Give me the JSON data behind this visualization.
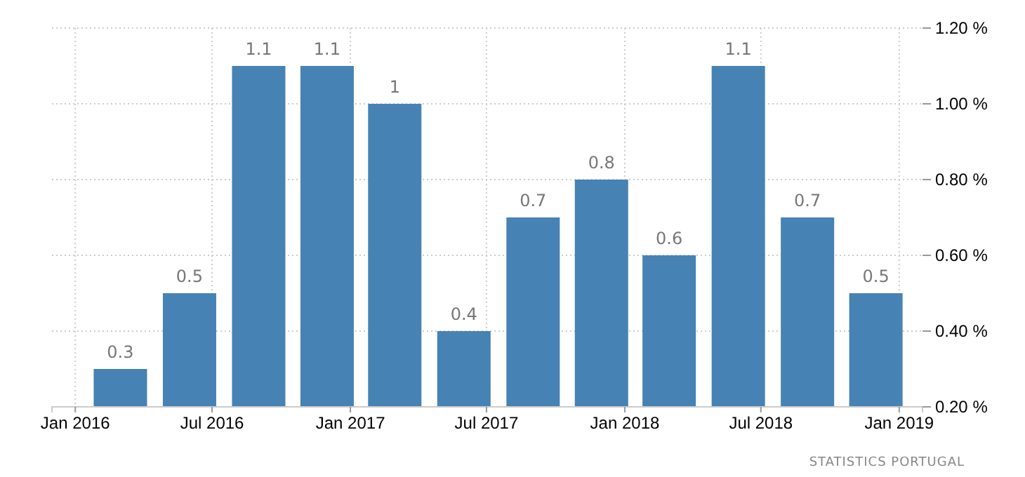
{
  "chart_data": {
    "type": "bar",
    "x": [
      "2016-03",
      "2016-06",
      "2016-09",
      "2016-12",
      "2017-03",
      "2017-06",
      "2017-09",
      "2017-12",
      "2018-03",
      "2018-06",
      "2018-09",
      "2018-12"
    ],
    "values": [
      0.3,
      0.5,
      1.1,
      1.1,
      1,
      0.4,
      0.7,
      0.8,
      0.6,
      1.1,
      0.7,
      0.5
    ],
    "color": "#4682b4",
    "xlim": [
      "2015-12",
      "2019-02"
    ],
    "xticks": [
      {
        "value": "2016-01",
        "label": "Jan 2016"
      },
      {
        "value": "2016-07",
        "label": "Jul 2016"
      },
      {
        "value": "2017-01",
        "label": "Jan 2017"
      },
      {
        "value": "2017-07",
        "label": "Jul 2017"
      },
      {
        "value": "2018-01",
        "label": "Jan 2018"
      },
      {
        "value": "2018-07",
        "label": "Jul 2018"
      },
      {
        "value": "2019-01",
        "label": "Jan 2019"
      }
    ],
    "ylim": [
      0.2,
      1.2
    ],
    "yticks": [
      {
        "value": 0.2,
        "label": "0.20 %"
      },
      {
        "value": 0.4,
        "label": "0.40 %"
      },
      {
        "value": 0.6,
        "label": "0.60 %"
      },
      {
        "value": 0.8,
        "label": "0.80 %"
      },
      {
        "value": 1.0,
        "label": "1.00 %"
      },
      {
        "value": 1.2,
        "label": "1.20 %"
      }
    ],
    "grid": true,
    "data_labels": true,
    "annotations": [
      "STATISTICS PORTUGAL"
    ]
  }
}
